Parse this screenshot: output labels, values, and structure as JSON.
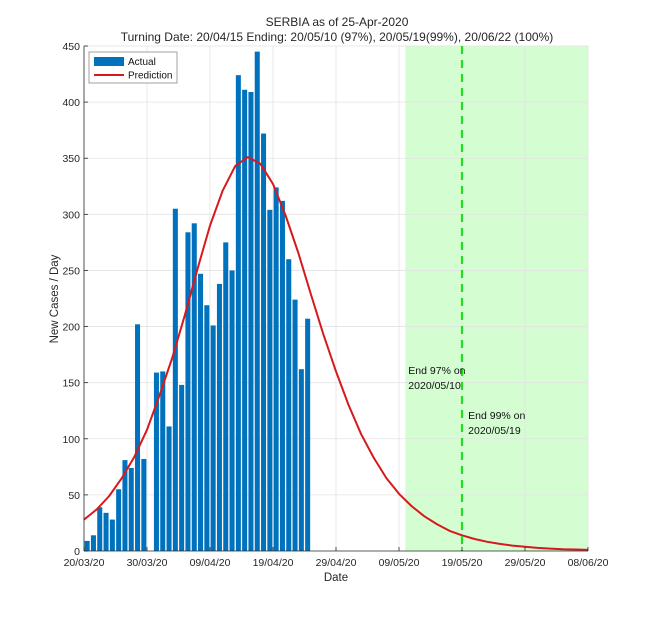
{
  "chart_data": {
    "type": "bar",
    "title": "SERBIA as of 25-Apr-2020",
    "subtitle": "Turning Date: 20/04/15  Ending: 20/05/10 (97%), 20/05/19(99%), 20/06/22 (100%)",
    "xlabel": "Date",
    "ylabel": "New Cases / Day",
    "start_date": "20/03/20",
    "xlim_days": [
      0,
      80
    ],
    "ylim": [
      0,
      450
    ],
    "yticks": [
      0,
      50,
      100,
      150,
      200,
      250,
      300,
      350,
      400,
      450
    ],
    "xticks": [
      {
        "day": 0,
        "label": "20/03/20"
      },
      {
        "day": 10,
        "label": "30/03/20"
      },
      {
        "day": 20,
        "label": "09/04/20"
      },
      {
        "day": 30,
        "label": "19/04/20"
      },
      {
        "day": 40,
        "label": "29/04/20"
      },
      {
        "day": 50,
        "label": "09/05/20"
      },
      {
        "day": 60,
        "label": "19/05/20"
      },
      {
        "day": 70,
        "label": "29/05/20"
      },
      {
        "day": 80,
        "label": "08/06/20"
      }
    ],
    "grid": true,
    "legend": {
      "position": "top-left",
      "entries": [
        "Actual",
        "Prediction"
      ]
    },
    "series": [
      {
        "name": "Actual",
        "type": "bar",
        "color": "#0072BD",
        "days": [
          0,
          1,
          2,
          3,
          4,
          5,
          6,
          7,
          8,
          9,
          10,
          11,
          12,
          13,
          14,
          15,
          16,
          17,
          18,
          19,
          20,
          21,
          22,
          23,
          24,
          25,
          26,
          27,
          28,
          29,
          30,
          31,
          32,
          33,
          34,
          35
        ],
        "values": [
          9,
          14,
          39,
          34,
          28,
          55,
          81,
          74,
          202,
          82,
          0,
          159,
          160,
          111,
          305,
          148,
          284,
          292,
          247,
          219,
          201,
          238,
          275,
          250,
          424,
          411,
          409,
          445,
          372,
          304,
          324,
          312,
          260,
          224,
          162,
          207
        ]
      },
      {
        "name": "Prediction",
        "type": "line",
        "color": "#D7191C",
        "days": [
          0,
          2,
          4,
          6,
          8,
          10,
          12,
          14,
          16,
          18,
          20,
          22,
          24,
          26,
          28,
          30,
          32,
          34,
          36,
          38,
          40,
          42,
          44,
          46,
          48,
          50,
          52,
          54,
          56,
          58,
          60,
          62,
          64,
          66,
          68,
          70,
          72,
          74,
          76,
          78,
          80
        ],
        "values": [
          28,
          37,
          49,
          65,
          84,
          108,
          139,
          172,
          210,
          251,
          290,
          321,
          343,
          351,
          345,
          327,
          299,
          266,
          229,
          193,
          160,
          130,
          104,
          83,
          65,
          51,
          40,
          31,
          24,
          18,
          14,
          10.7,
          8.2,
          6.3,
          4.8,
          3.7,
          2.8,
          2.1,
          1.6,
          1.3,
          1.0
        ]
      }
    ],
    "shaded_region": {
      "from_day": 51,
      "to_day": 80,
      "color": "#D5FDD2",
      "meaning": "ending period"
    },
    "vertical_line": {
      "day": 60,
      "color": "#22DD22",
      "style": "dashed"
    },
    "annotations": [
      {
        "day": 51,
        "y": 155,
        "lines": [
          "End 97% on",
          "2020/05/10"
        ]
      },
      {
        "day": 60.5,
        "y": 115,
        "lines": [
          "End 99% on",
          "2020/05/19"
        ]
      }
    ]
  }
}
